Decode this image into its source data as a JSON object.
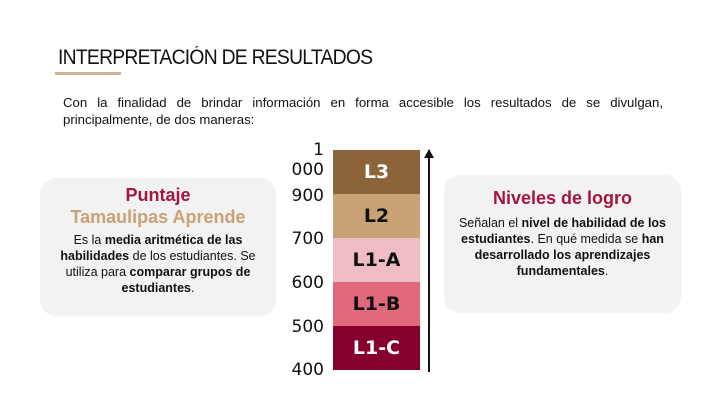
{
  "title": "INTERPRETACIÓN DE RESULTADOS",
  "intro": "Con la finalidad de brindar información en forma accesible los resultados de se divulgan, principalmente, de dos maneras:",
  "left_card": {
    "title1": "Puntaje",
    "title2": "Tamaulipas Aprende",
    "t1": "Es la ",
    "b1": "media aritmética de las habilidades",
    "t2": " de los estudiantes. Se utiliza para ",
    "b2": "comparar grupos de estudiantes",
    "t3": "."
  },
  "right_card": {
    "title": "Niveles de logro",
    "t1": "Señalan el ",
    "b1": "nivel de habilidad de los estudiantes",
    "t2": ". En qué medida se ",
    "b2": "han desarrollado los aprendizajes fundamentales",
    "t3": "."
  },
  "scale": {
    "ticks": [
      "1 000",
      "900",
      "700",
      "600",
      "500",
      "400"
    ],
    "levels": [
      {
        "label": "L3",
        "color": "#8b643a",
        "text": "#ffffff"
      },
      {
        "label": "L2",
        "color": "#c9a275",
        "text": "#111111"
      },
      {
        "label": "L1-A",
        "color": "#f0bcc3",
        "text": "#111111"
      },
      {
        "label": "L1-B",
        "color": "#e0687a",
        "text": "#111111"
      },
      {
        "label": "L1-C",
        "color": "#85002a",
        "text": "#ffffff"
      }
    ]
  },
  "colors": {
    "accent_red": "#a3173f",
    "accent_tan": "#c9a275"
  }
}
